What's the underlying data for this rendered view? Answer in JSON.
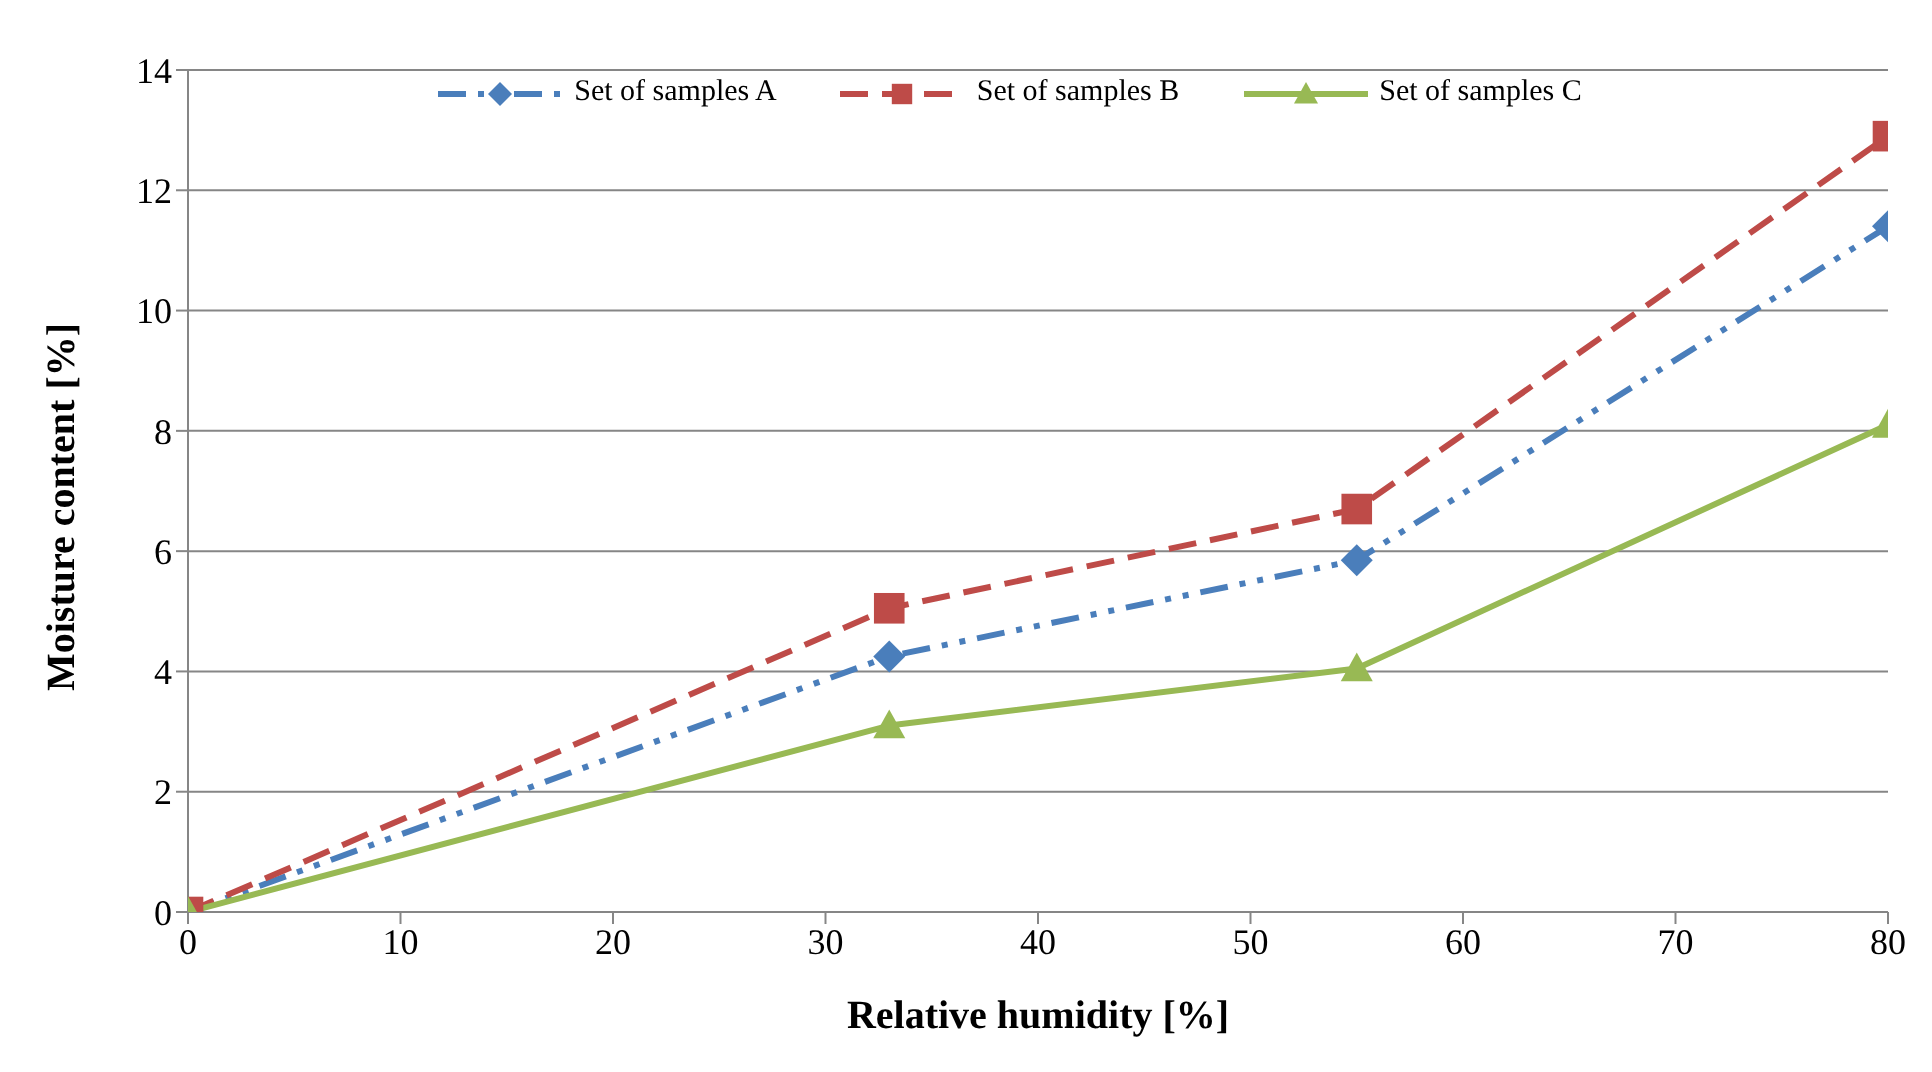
{
  "chart_data": {
    "type": "line",
    "xlabel": "Relative humidity [%]",
    "ylabel": "Moisture content [%]",
    "xlim": [
      0,
      80
    ],
    "xticks": [
      0,
      10,
      20,
      30,
      40,
      50,
      60,
      70,
      80
    ],
    "ylim": [
      0,
      14
    ],
    "yticks": [
      0,
      2,
      4,
      6,
      8,
      10,
      12,
      14
    ],
    "grid": "y",
    "legend": "top",
    "series": [
      {
        "name": "Set of samples A",
        "color": "#4a7ebb",
        "x": [
          0,
          33,
          55,
          80
        ],
        "values": [
          0,
          4.25,
          5.85,
          11.4
        ],
        "marker": "diamond",
        "line_style": "dashdot"
      },
      {
        "name": "Set of samples B",
        "color": "#be4b48",
        "x": [
          0,
          33,
          55,
          80
        ],
        "values": [
          0,
          5.05,
          6.7,
          12.9
        ],
        "marker": "square",
        "line_style": "dashed"
      },
      {
        "name": "Set of samples C",
        "color": "#98b954",
        "x": [
          0,
          33,
          55,
          80
        ],
        "values": [
          0,
          3.1,
          4.05,
          8.1
        ],
        "marker": "triangle",
        "line_style": "solid"
      }
    ]
  }
}
